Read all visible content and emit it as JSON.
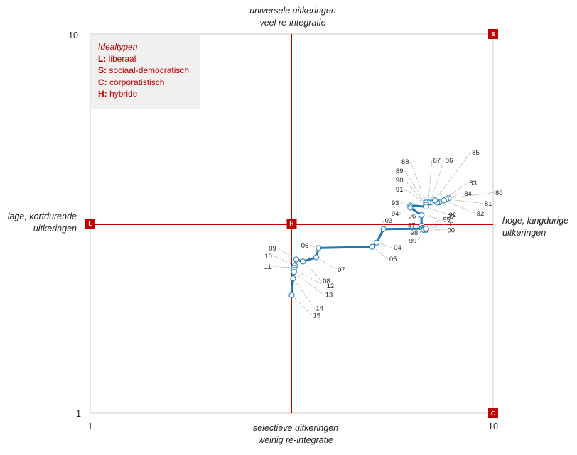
{
  "chart_data": {
    "type": "line",
    "xlim": [
      1,
      10
    ],
    "ylim": [
      1,
      10
    ],
    "x_ticks": [
      "1",
      "10"
    ],
    "y_ticks": [
      "1",
      "10"
    ],
    "axis_captions": {
      "top": [
        "universele uitkeringen",
        "veel re-integratie"
      ],
      "bottom": [
        "selectieve uitkeringen",
        "weinig re-integratie"
      ],
      "left": [
        "lage, kortdurende",
        "uitkeringen"
      ],
      "right": [
        "hoge, langdurige",
        "uitkeringen"
      ]
    },
    "corners": [
      {
        "label": "S",
        "x": 10,
        "y": 10
      },
      {
        "label": "L",
        "x": 1,
        "y": 5.5
      },
      {
        "label": "H",
        "x": 5.5,
        "y": 5.5
      },
      {
        "label": "C",
        "x": 10,
        "y": 1
      }
    ],
    "legend": {
      "title": "Idealtypen",
      "items": [
        {
          "key": "L:",
          "text": "liberaal"
        },
        {
          "key": "S:",
          "text": "sociaal-democratisch"
        },
        {
          "key": "C:",
          "text": "corporatistisch"
        },
        {
          "key": "H:",
          "text": "hybride"
        }
      ]
    },
    "series": [
      {
        "color": "#1f77b4",
        "points": [
          {
            "label": "80",
            "x": 9.0,
            "y": 6.1
          },
          {
            "label": "81",
            "x": 8.95,
            "y": 6.08
          },
          {
            "label": "82",
            "x": 8.9,
            "y": 6.05
          },
          {
            "label": "83",
            "x": 8.8,
            "y": 6.0
          },
          {
            "label": "84",
            "x": 8.75,
            "y": 6.0
          },
          {
            "label": "85",
            "x": 8.7,
            "y": 6.05
          },
          {
            "label": "86",
            "x": 8.6,
            "y": 6.0
          },
          {
            "label": "87",
            "x": 8.55,
            "y": 6.0
          },
          {
            "label": "88",
            "x": 8.5,
            "y": 6.0
          },
          {
            "label": "89",
            "x": 8.5,
            "y": 5.95
          },
          {
            "label": "90",
            "x": 8.5,
            "y": 5.95
          },
          {
            "label": "91",
            "x": 8.5,
            "y": 5.95
          },
          {
            "label": "92",
            "x": 8.5,
            "y": 5.9
          },
          {
            "label": "93",
            "x": 8.15,
            "y": 5.93
          },
          {
            "label": "94",
            "x": 8.15,
            "y": 5.88
          },
          {
            "label": "95",
            "x": 8.4,
            "y": 5.7
          },
          {
            "label": "96",
            "x": 8.4,
            "y": 5.45
          },
          {
            "label": "97",
            "x": 8.42,
            "y": 5.4
          },
          {
            "label": "98",
            "x": 8.45,
            "y": 5.37
          },
          {
            "label": "99",
            "x": 8.45,
            "y": 5.35
          },
          {
            "label": "00",
            "x": 8.5,
            "y": 5.35
          },
          {
            "label": "01",
            "x": 8.5,
            "y": 5.37
          },
          {
            "label": "02",
            "x": 8.5,
            "y": 5.38
          },
          {
            "label": "03",
            "x": 7.55,
            "y": 5.37
          },
          {
            "label": "04",
            "x": 7.4,
            "y": 5.05
          },
          {
            "label": "05",
            "x": 7.3,
            "y": 4.95
          },
          {
            "label": "06",
            "x": 6.1,
            "y": 4.92
          },
          {
            "label": "07",
            "x": 6.05,
            "y": 4.7
          },
          {
            "label": "08",
            "x": 5.75,
            "y": 4.6
          },
          {
            "label": "09",
            "x": 5.6,
            "y": 4.65
          },
          {
            "label": "10",
            "x": 5.57,
            "y": 4.5
          },
          {
            "label": "11",
            "x": 5.55,
            "y": 4.45
          },
          {
            "label": "12",
            "x": 5.55,
            "y": 4.4
          },
          {
            "label": "13",
            "x": 5.55,
            "y": 4.35
          },
          {
            "label": "14",
            "x": 5.53,
            "y": 4.2
          },
          {
            "label": "15",
            "x": 5.5,
            "y": 3.8
          }
        ]
      }
    ]
  }
}
